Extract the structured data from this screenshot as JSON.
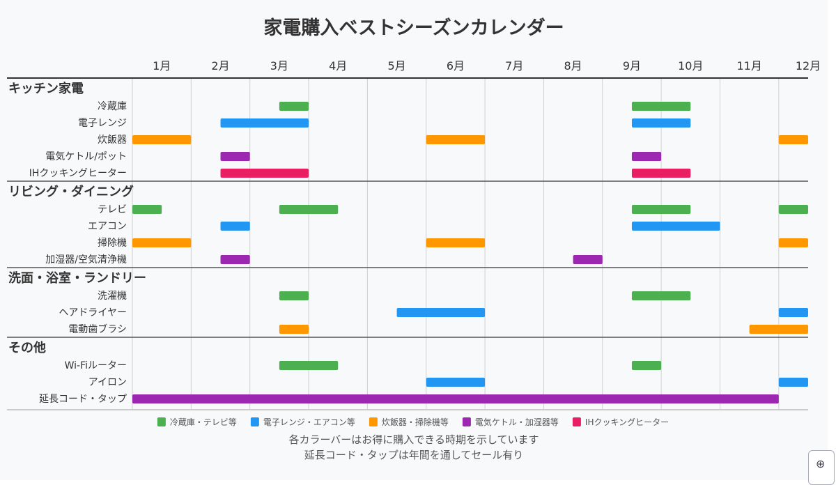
{
  "chart_data": {
    "type": "bar",
    "subtype": "timeline",
    "title": "家電購入ベストシーズンカレンダー",
    "x_tick_labels": [
      "1月",
      "2月",
      "3月",
      "4月",
      "5月",
      "6月",
      "7月",
      "8月",
      "9月",
      "10月",
      "11月",
      "12月"
    ],
    "xlim": [
      1,
      12.5
    ],
    "grid": true,
    "groups": [
      {
        "name": "キッチン家電",
        "rows": [
          {
            "label": "冷蔵庫",
            "color": "#4caf50",
            "periods": [
              [
                3.5,
                4
              ],
              [
                9.5,
                10.5
              ]
            ]
          },
          {
            "label": "電子レンジ",
            "color": "#2196f3",
            "periods": [
              [
                2.5,
                4
              ],
              [
                9.5,
                10.5
              ]
            ]
          },
          {
            "label": "炊飯器",
            "color": "#ff9800",
            "periods": [
              [
                1,
                2
              ],
              [
                6,
                7
              ],
              [
                12,
                12.5
              ]
            ]
          },
          {
            "label": "電気ケトル/ポット",
            "color": "#9c27b0",
            "periods": [
              [
                2.5,
                3
              ],
              [
                9.5,
                10
              ]
            ]
          },
          {
            "label": "IHクッキングヒーター",
            "color": "#e91e63",
            "periods": [
              [
                2.5,
                4
              ],
              [
                9.5,
                10.5
              ]
            ]
          }
        ]
      },
      {
        "name": "リビング・ダイニング",
        "rows": [
          {
            "label": "テレビ",
            "color": "#4caf50",
            "periods": [
              [
                1,
                1.5
              ],
              [
                3.5,
                4.5
              ],
              [
                9.5,
                10.5
              ],
              [
                12,
                12.5
              ]
            ]
          },
          {
            "label": "エアコン",
            "color": "#2196f3",
            "periods": [
              [
                2.5,
                3
              ],
              [
                9.5,
                11
              ]
            ]
          },
          {
            "label": "掃除機",
            "color": "#ff9800",
            "periods": [
              [
                1,
                2
              ],
              [
                6,
                7
              ],
              [
                12,
                12.5
              ]
            ]
          },
          {
            "label": "加湿器/空気清浄機",
            "color": "#9c27b0",
            "periods": [
              [
                2.5,
                3
              ],
              [
                8.5,
                9
              ]
            ]
          }
        ]
      },
      {
        "name": "洗面・浴室・ランドリー",
        "rows": [
          {
            "label": "洗濯機",
            "color": "#4caf50",
            "periods": [
              [
                3.5,
                4
              ],
              [
                9.5,
                10.5
              ]
            ]
          },
          {
            "label": "ヘアドライヤー",
            "color": "#2196f3",
            "periods": [
              [
                5.5,
                7
              ],
              [
                12,
                12.5
              ]
            ]
          },
          {
            "label": "電動歯ブラシ",
            "color": "#ff9800",
            "periods": [
              [
                3.5,
                4
              ],
              [
                11.5,
                12.5
              ]
            ]
          }
        ]
      },
      {
        "name": "その他",
        "rows": [
          {
            "label": "Wi-Fiルーター",
            "color": "#4caf50",
            "periods": [
              [
                3.5,
                4.5
              ],
              [
                9.5,
                10
              ]
            ]
          },
          {
            "label": "アイロン",
            "color": "#2196f3",
            "periods": [
              [
                6,
                7
              ],
              [
                12,
                12.5
              ]
            ]
          },
          {
            "label": "延長コード・タップ",
            "color": "#9c27b0",
            "periods": [
              [
                1,
                12
              ]
            ]
          }
        ]
      }
    ],
    "legend": {
      "placement": "bottom",
      "entries": [
        {
          "label": "冷蔵庫・テレビ等",
          "color": "#4caf50"
        },
        {
          "label": "電子レンジ・エアコン等",
          "color": "#2196f3"
        },
        {
          "label": "炊飯器・掃除機等",
          "color": "#ff9800"
        },
        {
          "label": "電気ケトル・加湿器等",
          "color": "#9c27b0"
        },
        {
          "label": "IHクッキングヒーター",
          "color": "#e91e63"
        }
      ]
    },
    "annotations": [
      "各カラーバーはお得に購入できる時期を示しています",
      "延長コード・タップは年間を通してセール有り"
    ]
  },
  "controls": {
    "zoom_icon": "zoom-in-icon"
  }
}
